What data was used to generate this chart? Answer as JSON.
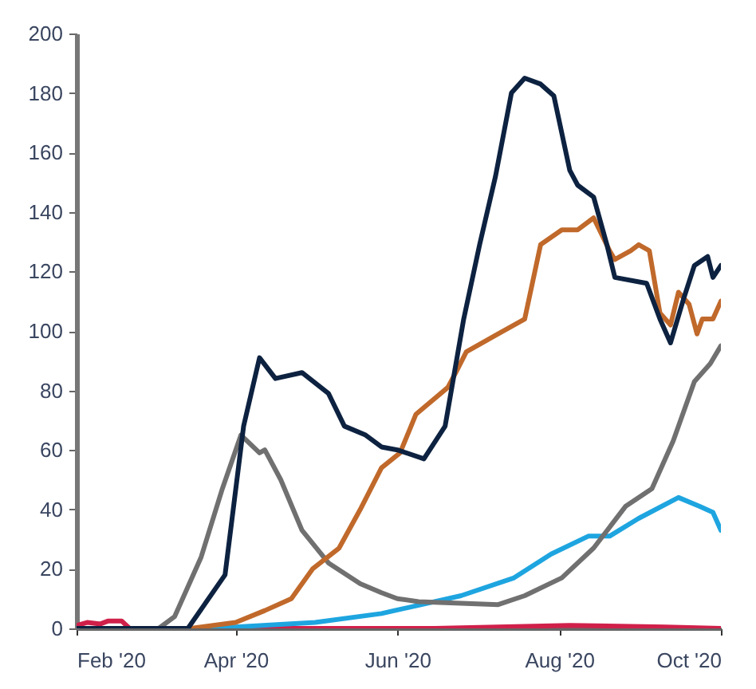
{
  "chart_data": {
    "type": "line",
    "xlim": [
      "2020-02-01",
      "2020-10-01"
    ],
    "ylim": [
      0,
      200
    ],
    "xticks": [
      {
        "value": "2020-02-01",
        "label": "Feb '20"
      },
      {
        "value": "2020-04-01",
        "label": "Apr '20"
      },
      {
        "value": "2020-06-01",
        "label": "Jun '20"
      },
      {
        "value": "2020-08-01",
        "label": "Aug '20"
      },
      {
        "value": "2020-10-01",
        "label": "Oct '20"
      }
    ],
    "yticks": [
      0,
      20,
      40,
      60,
      80,
      100,
      120,
      140,
      160,
      180,
      200
    ],
    "grid": false,
    "series": [
      {
        "color": "#d0204a",
        "x": [
          "2020-02-01",
          "2020-02-05",
          "2020-02-10",
          "2020-02-13",
          "2020-02-18",
          "2020-02-21",
          "2020-04-15",
          "2020-06-15",
          "2020-08-05",
          "2020-09-10",
          "2020-10-01"
        ],
        "values": [
          1,
          2,
          1.5,
          2.5,
          2.5,
          0,
          0,
          0,
          1,
          0.5,
          0
        ]
      },
      {
        "color": "#1ea5e0",
        "x": [
          "2020-02-01",
          "2020-03-20",
          "2020-04-01",
          "2020-05-01",
          "2020-05-26",
          "2020-06-25",
          "2020-07-15",
          "2020-07-29",
          "2020-08-12",
          "2020-08-20",
          "2020-08-31",
          "2020-09-15",
          "2020-09-23",
          "2020-09-28",
          "2020-10-01"
        ],
        "values": [
          0,
          0,
          0.5,
          2,
          5,
          11,
          17,
          25,
          31,
          31,
          37,
          44,
          41,
          39,
          33
        ]
      },
      {
        "color": "#707070",
        "x": [
          "2020-02-01",
          "2020-03-03",
          "2020-03-09",
          "2020-03-19",
          "2020-03-27",
          "2020-04-03",
          "2020-04-10",
          "2020-04-12",
          "2020-04-18",
          "2020-04-26",
          "2020-05-06",
          "2020-05-18",
          "2020-05-26",
          "2020-06-01",
          "2020-06-09",
          "2020-07-09",
          "2020-07-19",
          "2020-08-02",
          "2020-08-14",
          "2020-08-26",
          "2020-09-05",
          "2020-09-13",
          "2020-09-21",
          "2020-09-27",
          "2020-10-01"
        ],
        "values": [
          0,
          0,
          4,
          24,
          47,
          65,
          59,
          60,
          50,
          33,
          22,
          15,
          12,
          10,
          9,
          8,
          11,
          17,
          27,
          41,
          47,
          63,
          83,
          89,
          95
        ]
      },
      {
        "color": "#c0692b",
        "x": [
          "2020-02-01",
          "2020-03-15",
          "2020-04-01",
          "2020-04-12",
          "2020-04-22",
          "2020-04-30",
          "2020-05-10",
          "2020-05-18",
          "2020-05-26",
          "2020-06-02",
          "2020-06-08",
          "2020-06-12",
          "2020-06-20",
          "2020-06-23",
          "2020-06-27",
          "2020-07-09",
          "2020-07-19",
          "2020-07-25",
          "2020-08-02",
          "2020-08-08",
          "2020-08-14",
          "2020-08-20",
          "2020-08-22",
          "2020-08-28",
          "2020-08-31",
          "2020-09-04",
          "2020-09-08",
          "2020-09-12",
          "2020-09-15",
          "2020-09-19",
          "2020-09-22",
          "2020-09-24",
          "2020-09-28",
          "2020-10-01"
        ],
        "values": [
          0,
          0,
          2,
          6,
          10,
          20,
          27,
          40,
          54,
          59,
          72,
          75,
          81,
          86,
          93,
          99,
          104,
          129,
          134,
          134,
          138,
          127,
          124,
          127,
          129,
          127,
          106,
          102,
          113,
          109,
          99,
          104,
          104,
          110
        ]
      },
      {
        "color": "#0d2240",
        "x": [
          "2020-02-01",
          "2020-03-14",
          "2020-03-28",
          "2020-04-04",
          "2020-04-10",
          "2020-04-16",
          "2020-04-26",
          "2020-05-06",
          "2020-05-12",
          "2020-05-20",
          "2020-05-26",
          "2020-06-01",
          "2020-06-11",
          "2020-06-19",
          "2020-06-26",
          "2020-07-02",
          "2020-07-08",
          "2020-07-14",
          "2020-07-19",
          "2020-07-25",
          "2020-07-30",
          "2020-08-05",
          "2020-08-08",
          "2020-08-14",
          "2020-08-19",
          "2020-08-22",
          "2020-09-03",
          "2020-09-08",
          "2020-09-12",
          "2020-09-17",
          "2020-09-21",
          "2020-09-26",
          "2020-09-28",
          "2020-10-01"
        ],
        "values": [
          0,
          0,
          18,
          68,
          91,
          84,
          86,
          79,
          68,
          65,
          61,
          60,
          57,
          68,
          104,
          129,
          152,
          180,
          185,
          183,
          179,
          154,
          149,
          145,
          129,
          118,
          116,
          104,
          96,
          111,
          122,
          125,
          118,
          122
        ]
      }
    ]
  }
}
